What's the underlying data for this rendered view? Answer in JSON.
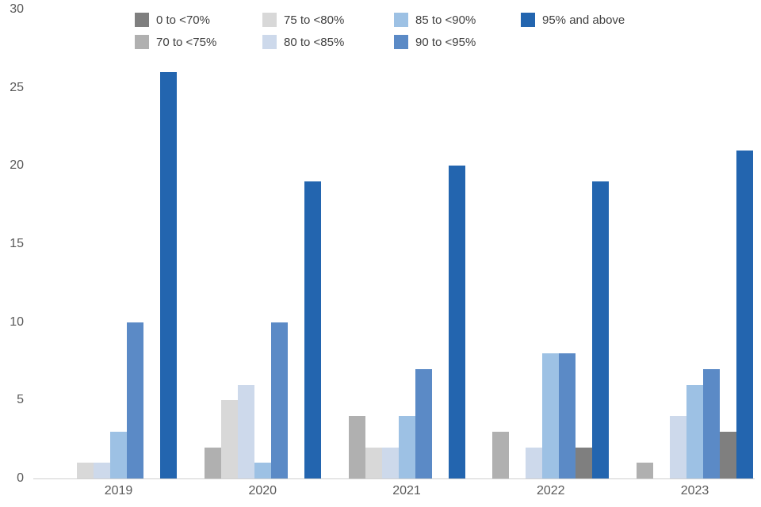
{
  "chart_data": {
    "type": "bar",
    "title": "",
    "xlabel": "",
    "ylabel": "",
    "categories": [
      "2019",
      "2020",
      "2021",
      "2022",
      "2023"
    ],
    "series": [
      {
        "name": "0 to <70%",
        "color": "#7f7f7f",
        "values": [
          0,
          0,
          0,
          2,
          3
        ]
      },
      {
        "name": "70 to <75%",
        "color": "#b0b0b0",
        "values": [
          0,
          2,
          4,
          3,
          1
        ]
      },
      {
        "name": "75 to <80%",
        "color": "#d8d8d8",
        "values": [
          1,
          5,
          2,
          0,
          0
        ]
      },
      {
        "name": "80 to <85%",
        "color": "#cdd9eb",
        "values": [
          1,
          6,
          2,
          2,
          4
        ]
      },
      {
        "name": "85 to <90%",
        "color": "#9dc1e4",
        "values": [
          3,
          1,
          4,
          8,
          6
        ]
      },
      {
        "name": "90 to <95%",
        "color": "#5b8ac6",
        "values": [
          10,
          10,
          7,
          8,
          7
        ]
      },
      {
        "name": "95% and above",
        "color": "#2365af",
        "values": [
          26,
          19,
          20,
          19,
          21
        ]
      }
    ],
    "plot_order": [
      1,
      2,
      3,
      4,
      5,
      0,
      6
    ],
    "ylim": [
      0,
      30
    ],
    "yticks": [
      0,
      5,
      10,
      15,
      20,
      25,
      30
    ],
    "grid": false,
    "legend_position": "top",
    "legend_columns": [
      [
        0,
        1
      ],
      [
        2,
        3
      ],
      [
        4,
        5
      ],
      [
        6
      ]
    ]
  }
}
